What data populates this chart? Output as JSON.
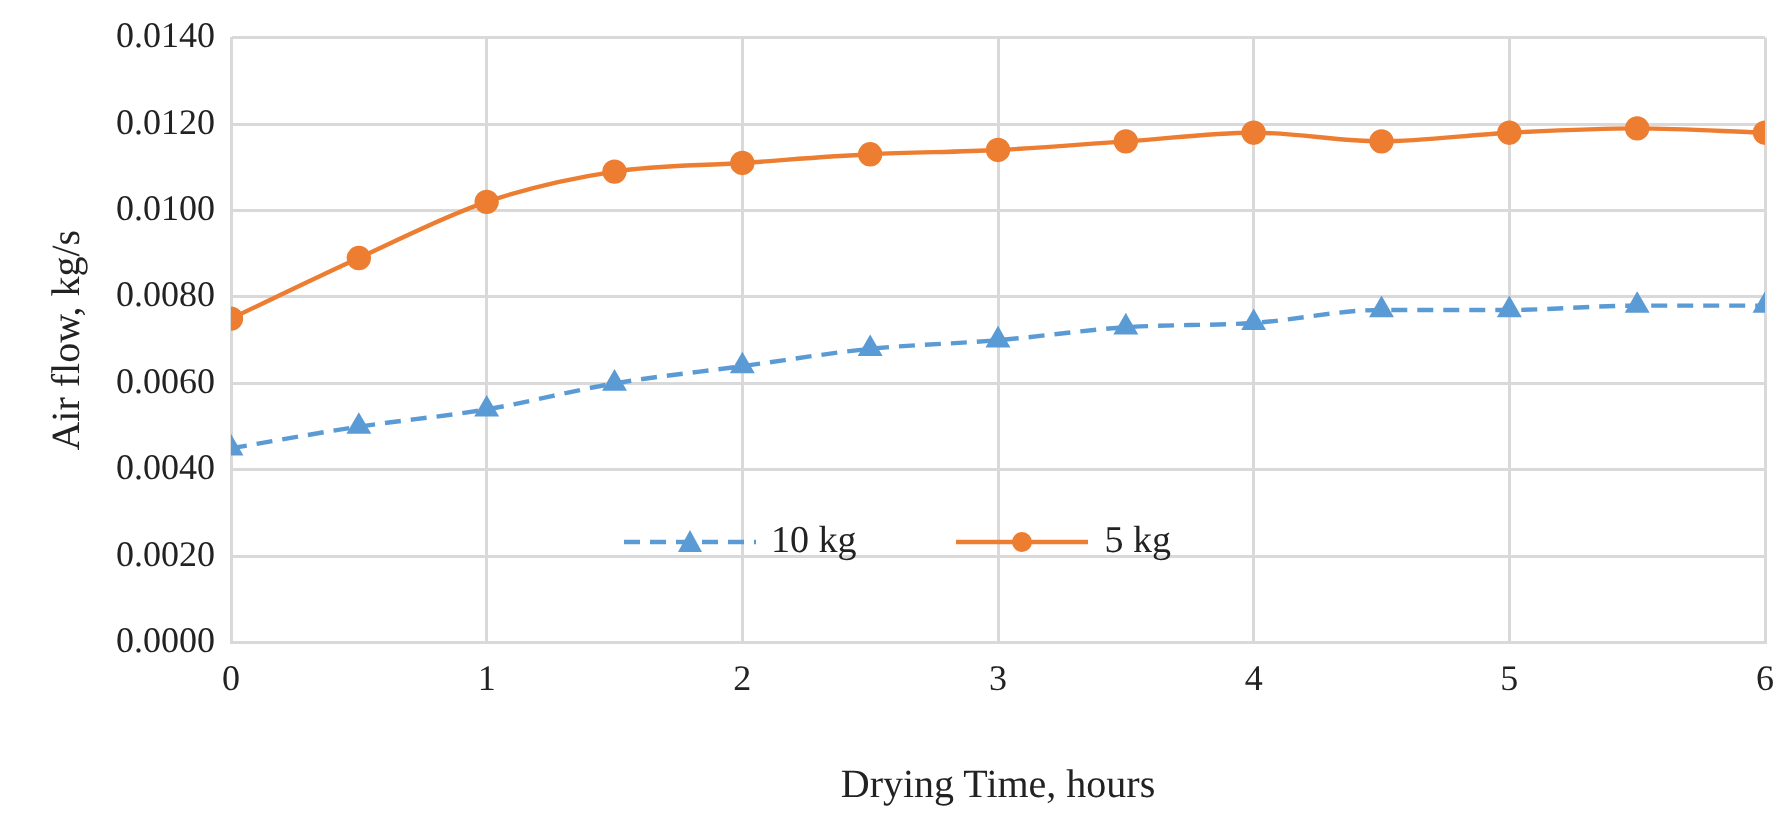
{
  "chart_data": {
    "type": "line",
    "xlabel": "Drying Time, hours",
    "ylabel": "Air flow, kg/s",
    "x": [
      0,
      0.5,
      1,
      1.5,
      2,
      2.5,
      3,
      3.5,
      4,
      4.5,
      5,
      5.5,
      6
    ],
    "series": [
      {
        "name": "10 kg",
        "color": "#5b9bd5",
        "marker": "triangle",
        "line_style": "dashed",
        "values": [
          0.0045,
          0.005,
          0.0054,
          0.006,
          0.0064,
          0.0068,
          0.007,
          0.0073,
          0.0074,
          0.0077,
          0.0077,
          0.0078,
          0.0078
        ]
      },
      {
        "name": "5 kg",
        "color": "#ed7d31",
        "marker": "circle",
        "line_style": "solid",
        "values": [
          0.0075,
          0.0089,
          0.0102,
          0.0109,
          0.0111,
          0.0113,
          0.0114,
          0.0116,
          0.0118,
          0.0116,
          0.0118,
          0.0119,
          0.0118
        ]
      }
    ],
    "xlim": [
      0,
      6
    ],
    "xticks": [
      0,
      1,
      2,
      3,
      4,
      5,
      6
    ],
    "ylim": [
      0,
      0.014
    ],
    "yticks": [
      {
        "value": 0,
        "label": "0.0000"
      },
      {
        "value": 0.002,
        "label": "0.0020"
      },
      {
        "value": 0.004,
        "label": "0.0040"
      },
      {
        "value": 0.006,
        "label": "0.0060"
      },
      {
        "value": 0.008,
        "label": "0.0080"
      },
      {
        "value": 0.01,
        "label": "0.0100"
      },
      {
        "value": 0.012,
        "label": "0.0120"
      },
      {
        "value": 0.014,
        "label": "0.0140"
      }
    ],
    "grid": true,
    "legend": "bottom"
  }
}
